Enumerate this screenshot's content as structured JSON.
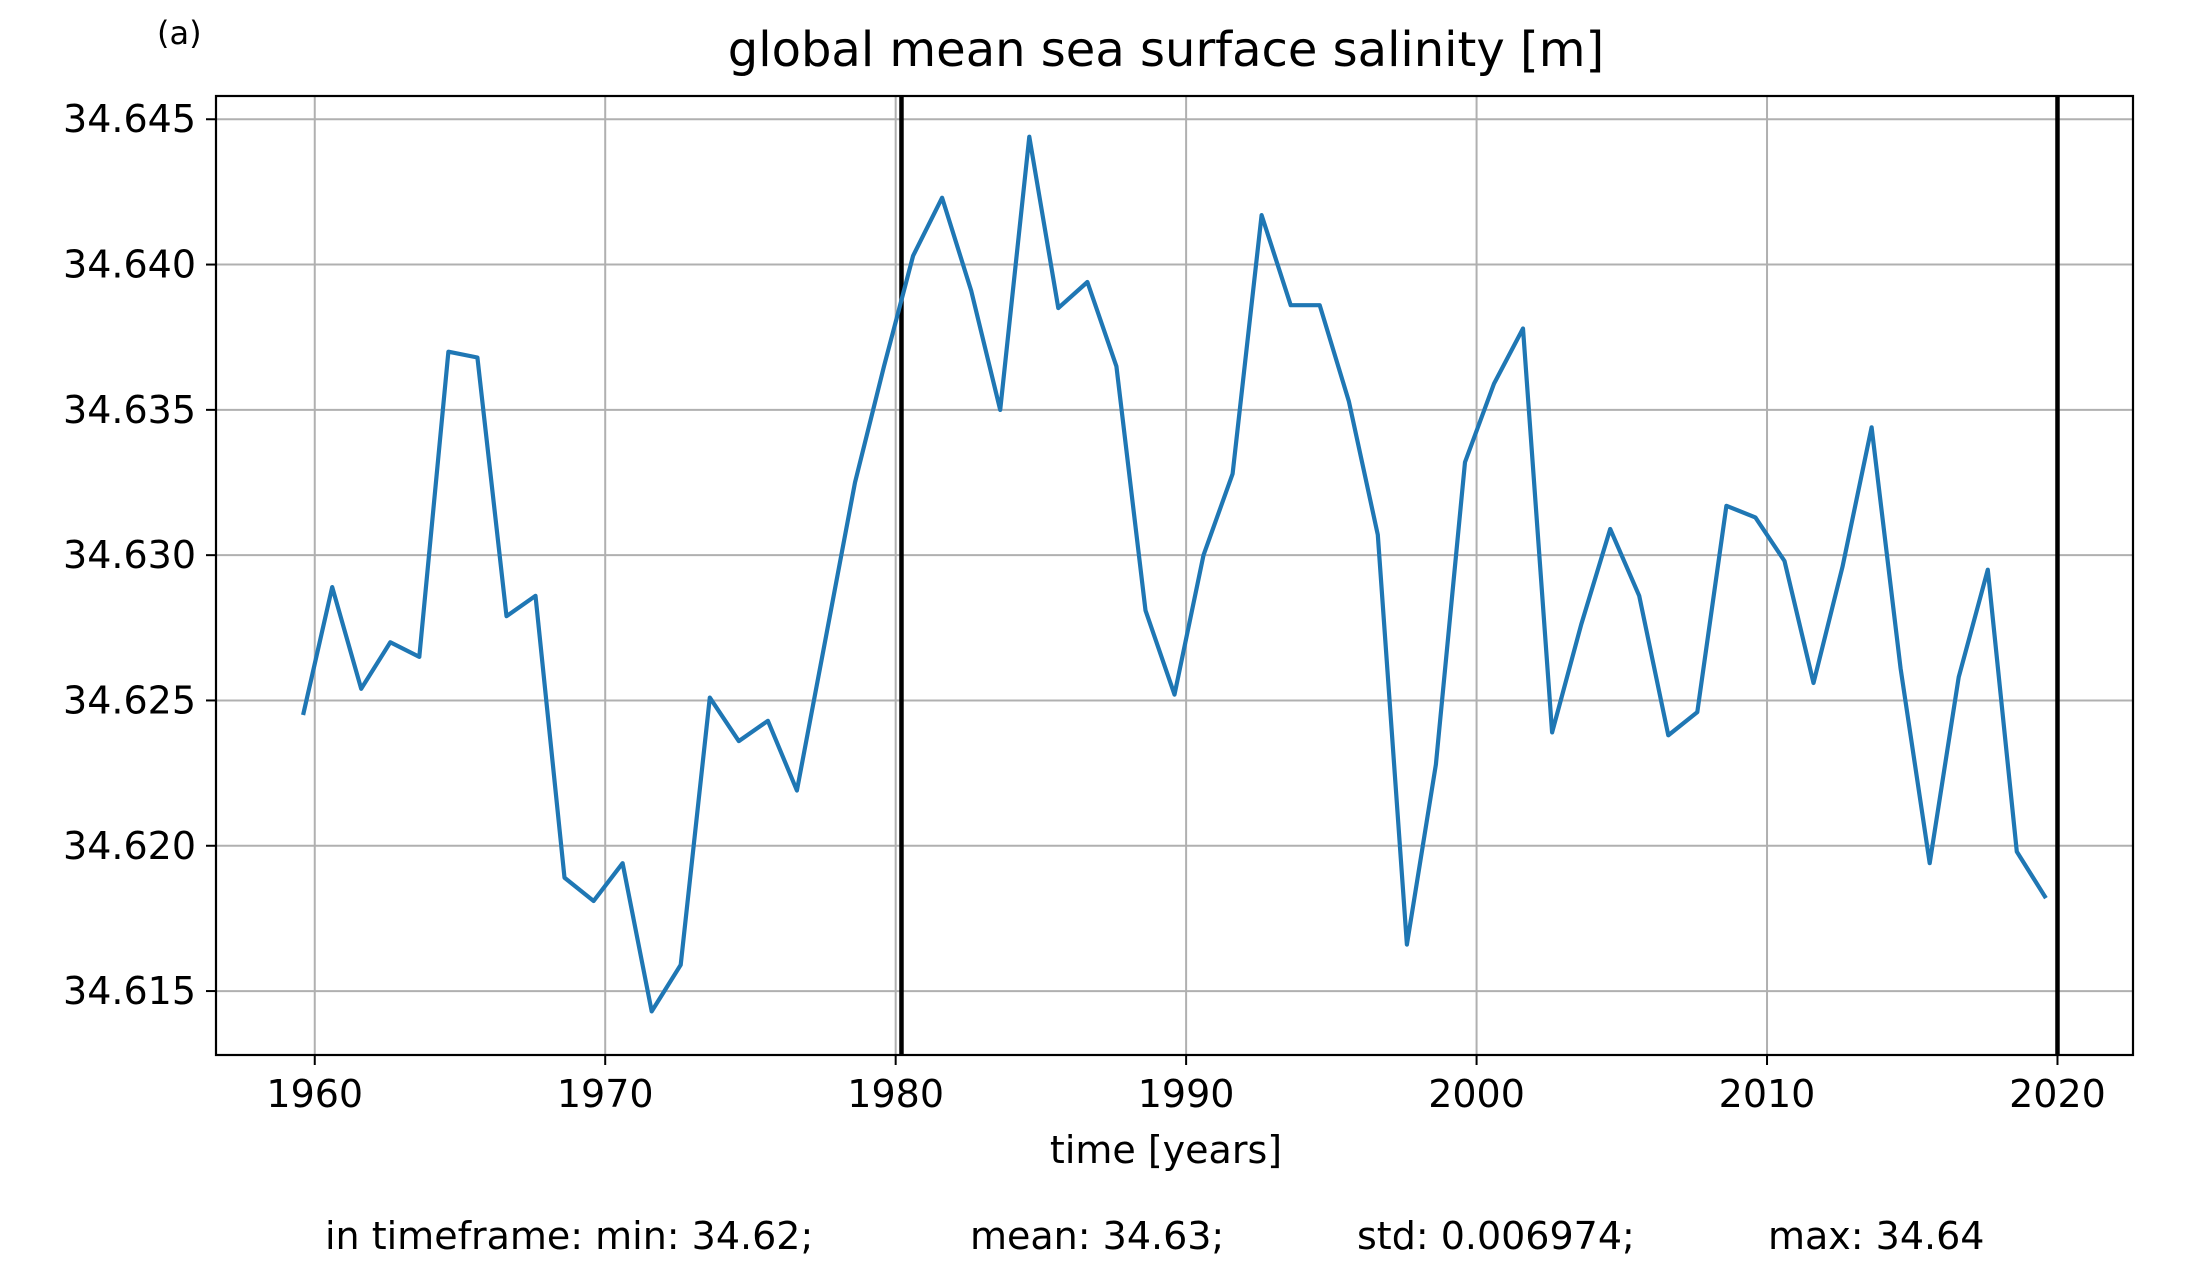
{
  "panel_label": "(a)",
  "chart_data": {
    "type": "line",
    "title": "global mean sea surface salinity [m]",
    "xlabel": "time [years]",
    "ylabel": "",
    "xlim": [
      1956.6,
      2022.6
    ],
    "ylim": [
      34.6128,
      34.6458
    ],
    "x_ticks": [
      1960,
      1970,
      1980,
      1990,
      2000,
      2010,
      2020
    ],
    "x_tick_labels": [
      "1960",
      "1970",
      "1980",
      "1990",
      "2000",
      "2010",
      "2020"
    ],
    "y_ticks": [
      34.615,
      34.62,
      34.625,
      34.63,
      34.635,
      34.64,
      34.645
    ],
    "y_tick_labels": [
      "34.615",
      "34.620",
      "34.625",
      "34.630",
      "34.635",
      "34.640",
      "34.645"
    ],
    "grid": true,
    "vertical_lines": [
      1980.2,
      2020.0
    ],
    "series": [
      {
        "color": "#1f77b4",
        "x": [
          1959.6,
          1960.6,
          1961.6,
          1962.6,
          1963.6,
          1964.6,
          1965.6,
          1966.6,
          1967.6,
          1968.6,
          1969.6,
          1970.6,
          1971.6,
          1972.6,
          1973.6,
          1974.6,
          1975.6,
          1976.6,
          1977.6,
          1978.6,
          1979.6,
          1980.6,
          1981.6,
          1982.6,
          1983.6,
          1984.6,
          1985.6,
          1986.6,
          1987.6,
          1988.6,
          1989.6,
          1990.6,
          1991.6,
          1992.6,
          1993.6,
          1994.6,
          1995.6,
          1996.6,
          1997.6,
          1998.6,
          1999.6,
          2000.6,
          2001.6,
          2002.6,
          2003.6,
          2004.6,
          2005.6,
          2006.6,
          2007.6,
          2008.6,
          2009.6,
          2010.6,
          2011.6,
          2012.6,
          2013.6,
          2014.6,
          2015.6,
          2016.6,
          2017.6,
          2018.6,
          2019.6
        ],
        "values": [
          34.6245,
          34.6289,
          34.6254,
          34.627,
          34.6265,
          34.637,
          34.6368,
          34.6279,
          34.6286,
          34.6189,
          34.6181,
          34.6194,
          34.6143,
          34.6159,
          34.6251,
          34.6236,
          34.6243,
          34.6219,
          34.6272,
          34.6325,
          34.6365,
          34.6403,
          34.6423,
          34.6391,
          34.635,
          34.6444,
          34.6385,
          34.6394,
          34.6365,
          34.6281,
          34.6252,
          34.63,
          34.6328,
          34.6417,
          34.6386,
          34.6386,
          34.6353,
          34.6307,
          34.6166,
          34.6228,
          34.6332,
          34.6359,
          34.6378,
          34.6239,
          34.6276,
          34.6309,
          34.6286,
          34.6238,
          34.6246,
          34.6317,
          34.6313,
          34.6298,
          34.6256,
          34.6296,
          34.6344,
          34.6261,
          34.6194,
          34.6258,
          34.6295,
          34.6198,
          34.6182
        ]
      }
    ]
  },
  "stats": {
    "min": "in timeframe: min: 34.62;",
    "mean": "mean: 34.63;",
    "std": "std: 0.006974;",
    "max": "max: 34.64"
  }
}
